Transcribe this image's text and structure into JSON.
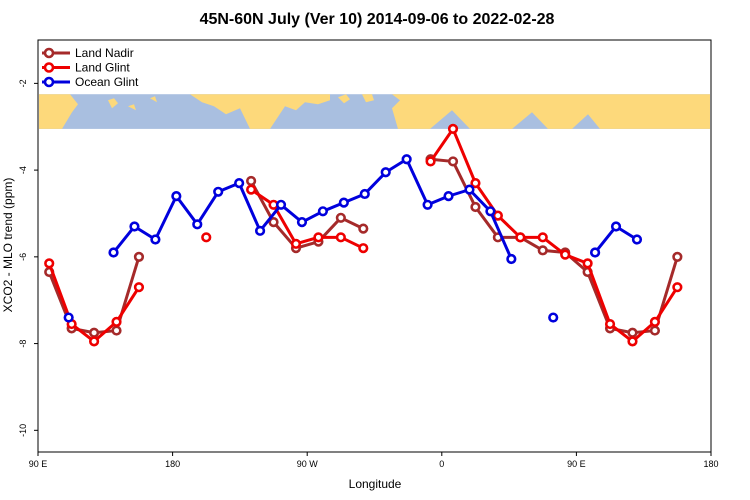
{
  "chart_data": {
    "type": "line",
    "title": "45N-60N July (Ver 10)   2014-09-06 to 2022-02-28",
    "xlabel": "Longitude",
    "ylabel": "XCO2 - MLO trend (ppm)",
    "xlim": [
      90,
      540
    ],
    "ylim": [
      -10.5,
      -1.0
    ],
    "x_ticks": [
      {
        "value": 90,
        "label": "90 E"
      },
      {
        "value": 180,
        "label": "180"
      },
      {
        "value": 270,
        "label": "90 W"
      },
      {
        "value": 360,
        "label": "0"
      },
      {
        "value": 450,
        "label": "90 E"
      },
      {
        "value": 540,
        "label": "180"
      }
    ],
    "y_ticks": [
      {
        "value": -2,
        "label": "-2"
      },
      {
        "value": -4,
        "label": "-4"
      },
      {
        "value": -6,
        "label": "-6"
      },
      {
        "value": -8,
        "label": "-8"
      },
      {
        "value": -10,
        "label": "-10"
      }
    ],
    "legend_position": "top-left",
    "map_band": {
      "y_top": -2.25,
      "y_bottom": -3.05,
      "ocean_color": "#a9bfe0",
      "land_color": "#fdd97b"
    },
    "series": [
      {
        "name": "Land Nadir",
        "color": "#a52a2a",
        "x": [
          97.5,
          112.5,
          127.5,
          142.5,
          157.5,
          null,
          232.5,
          247.5,
          262.5,
          277.5,
          292.5,
          307.5,
          null,
          352.5,
          367.5,
          382.5,
          397.5,
          412.5,
          427.5,
          442.5,
          457.5,
          472.5,
          487.5,
          502.5,
          517.5,
          532.5
        ],
        "y": [
          -6.35,
          -7.65,
          -7.75,
          -7.7,
          -6.0,
          null,
          -4.25,
          -5.2,
          -5.8,
          -5.65,
          -5.1,
          -5.35,
          null,
          -3.75,
          -3.8,
          -4.85,
          -5.55,
          -5.55,
          -5.85,
          -5.9,
          -6.35,
          -7.65,
          -7.75,
          -7.7,
          -6.0,
          null
        ]
      },
      {
        "name": "Land Glint",
        "color": "#ee0000",
        "x": [
          97.5,
          112.5,
          127.5,
          142.5,
          157.5,
          null,
          202.5,
          null,
          232.5,
          247.5,
          262.5,
          277.5,
          292.5,
          307.5,
          null,
          352.5,
          367.5,
          382.5,
          397.5,
          412.5,
          427.5,
          442.5,
          457.5,
          472.5,
          487.5,
          502.5,
          517.5,
          532.5
        ],
        "y": [
          -6.15,
          -7.55,
          -7.95,
          -7.5,
          -6.7,
          null,
          -5.55,
          null,
          -4.45,
          -4.8,
          -5.7,
          -5.55,
          -5.55,
          -5.8,
          null,
          -3.8,
          -3.05,
          -4.3,
          -5.05,
          -5.55,
          -5.55,
          -5.95,
          -6.15,
          -7.55,
          -7.95,
          -7.5,
          -6.7,
          null
        ]
      },
      {
        "name": "Ocean Glint",
        "color": "#0000dd",
        "x": [
          110.5,
          125.5,
          140.5,
          154.5,
          168.5,
          182.5,
          196.5,
          210.5,
          224.5,
          238.5,
          252.5,
          266.5,
          280.5,
          294.5,
          308.5,
          322.5,
          336.5,
          350.5,
          364.5,
          378.5,
          392.5,
          406.5,
          420.5,
          434.5,
          448.5,
          462.5,
          476.5,
          490.5,
          504.5,
          518.5
        ],
        "y": [
          -7.4,
          null,
          -5.9,
          -5.3,
          -5.6,
          -4.6,
          -5.25,
          -4.5,
          -4.3,
          -5.4,
          -4.8,
          -5.2,
          -4.95,
          -4.75,
          -4.55,
          -4.05,
          -3.75,
          -4.8,
          -4.6,
          -4.45,
          -4.95,
          -6.05,
          null,
          -7.4,
          null,
          -5.9,
          -5.3,
          -5.6,
          null,
          null
        ]
      }
    ]
  }
}
